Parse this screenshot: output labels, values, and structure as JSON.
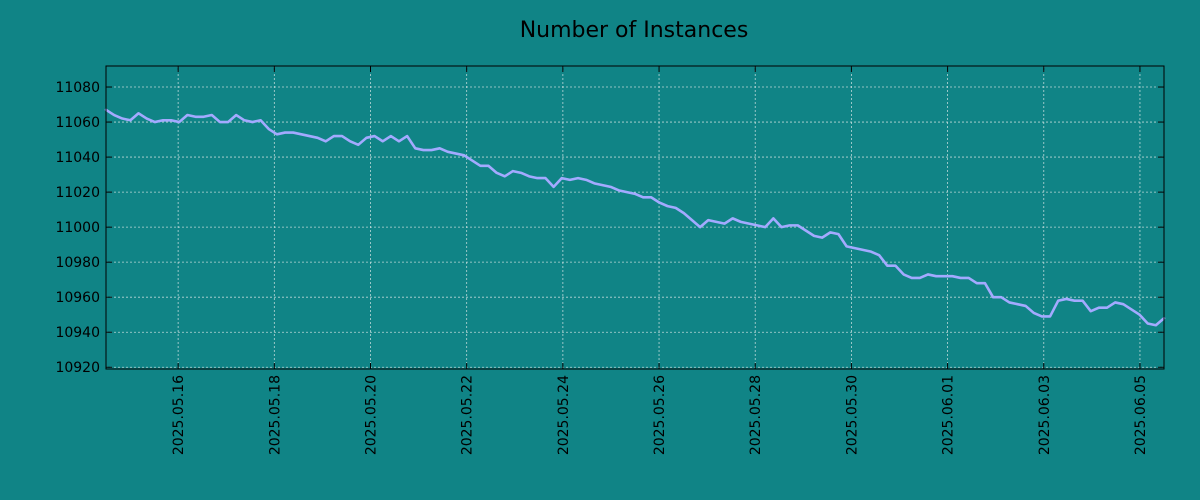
{
  "colors": {
    "background": "#108486",
    "line": "#a3aaff"
  },
  "chart_data": {
    "type": "line",
    "title": "Number of Instances",
    "xlabel": "",
    "ylabel": "",
    "x_start": "2025-05-14 12:00",
    "x_end": "2025-06-05 12:00",
    "xlim": [
      "2025-05-14 12:00",
      "2025-06-05 12:00"
    ],
    "ylim": [
      10919,
      11092
    ],
    "grid": true,
    "y_ticks": [
      10920,
      10940,
      10960,
      10980,
      11000,
      11020,
      11040,
      11060,
      11080
    ],
    "y_tick_labels": [
      "10920",
      "10940",
      "10960",
      "10980",
      "11000",
      "11020",
      "11040",
      "11060",
      "11080"
    ],
    "x_ticks": [
      "2025-05-16",
      "2025-05-18",
      "2025-05-20",
      "2025-05-22",
      "2025-05-24",
      "2025-05-26",
      "2025-05-28",
      "2025-05-30",
      "2025-06-01",
      "2025-06-03",
      "2025-06-05"
    ],
    "x_tick_labels": [
      "2025.05.16",
      "2025.05.18",
      "2025.05.20",
      "2025.05.22",
      "2025.05.24",
      "2025.05.26",
      "2025.05.28",
      "2025.05.30",
      "2025.06.01",
      "2025.06.03",
      "2025.06.05"
    ],
    "series": [
      {
        "values": [
          11067,
          11064,
          11062,
          11061,
          11065,
          11062,
          11060,
          11061,
          11061,
          11060,
          11064,
          11063,
          11063,
          11064,
          11060,
          11060,
          11064,
          11061,
          11060,
          11061,
          11056,
          11053,
          11054,
          11054,
          11053,
          11052,
          11051,
          11049,
          11052,
          11052,
          11049,
          11047,
          11051,
          11052,
          11049,
          11052,
          11049,
          11052,
          11045,
          11044,
          11044,
          11045,
          11043,
          11042,
          11041,
          11038,
          11035,
          11035,
          11031,
          11029,
          11032,
          11031,
          11029,
          11028,
          11028,
          11023,
          11028,
          11027,
          11028,
          11027,
          11025,
          11024,
          11023,
          11021,
          11020,
          11019,
          11017,
          11017,
          11014,
          11012,
          11011,
          11008,
          11004,
          11000,
          11004,
          11003,
          11002,
          11005,
          11003,
          11002,
          11001,
          11000,
          11005,
          11000,
          11001,
          11001,
          10998,
          10995,
          10994,
          10997,
          10996,
          10989,
          10988,
          10987,
          10986,
          10984,
          10978,
          10978,
          10973,
          10971,
          10971,
          10973,
          10972,
          10972,
          10972,
          10971,
          10971,
          10968,
          10968,
          10960,
          10960,
          10957,
          10956,
          10955,
          10951,
          10949,
          10949,
          10958,
          10959,
          10958,
          10958,
          10952,
          10954,
          10954,
          10957,
          10956,
          10953,
          10950,
          10945,
          10944,
          10948
        ]
      }
    ]
  }
}
